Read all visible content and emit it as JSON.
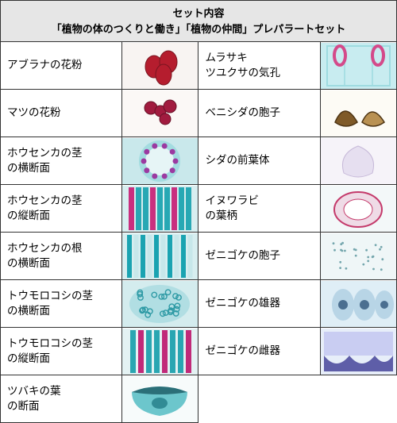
{
  "header": {
    "line1": "セット内容",
    "line2": "「植物の体のつくりと働き」「植物の仲間」プレパラートセット"
  },
  "rows": [
    {
      "left": "アブラナの花粉",
      "right": "ムラサキ\nツユクサの気孔",
      "imgL": {
        "bg": "#f8f4f2",
        "type": "pollen",
        "fill": "#b51d2e",
        "stroke": "#7a1520"
      },
      "imgR": {
        "bg": "#c8ecf0",
        "type": "stomata",
        "fill": "#d44a8a",
        "frame": "#9edbe0"
      }
    },
    {
      "left": "マツの花粉",
      "right": "ベニシダの胞子",
      "imgL": {
        "bg": "#fbf8f6",
        "type": "pine",
        "fill": "#a11b3f",
        "stroke": "#6a1228"
      },
      "imgR": {
        "bg": "#fdfbf5",
        "type": "spore",
        "fill": "#7f5a28",
        "stroke": "#4f3615",
        "fill2": "#b99152"
      }
    },
    {
      "left": "ホウセンカの茎\nの横断面",
      "right": "シダの前葉体",
      "imgL": {
        "bg": "#c9e8eb",
        "type": "stemx",
        "ring": "#7dcfd5",
        "dots": "#9b3aa1"
      },
      "imgR": {
        "bg": "#f6f3f9",
        "type": "prothallus",
        "fill": "#e6dff0",
        "stroke": "#c6b8d8"
      }
    },
    {
      "left": "ホウセンカの茎\nの縦断面",
      "right": "イヌワラビ\nの葉柄",
      "imgL": {
        "bg": "#d8eef0",
        "type": "stemL1",
        "c1": "#c92f7f",
        "c2": "#28a8b4"
      },
      "imgR": {
        "bg": "#f3f8f9",
        "type": "petiole",
        "stroke": "#c43a6b",
        "inner": "#efdbe6"
      }
    },
    {
      "left": "ホウセンカの根\nの横断面",
      "right": "ゼニゴケの胞子",
      "imgL": {
        "bg": "#d7eef0",
        "type": "stemL2",
        "c1": "#1aa3b1",
        "c2": "#c7e7ea"
      },
      "imgR": {
        "bg": "#eff6f7",
        "type": "mossspore",
        "dot": "#74a6ad"
      }
    },
    {
      "left": "トウモロコシの茎\nの横断面",
      "right": "ゼニゴケの雄器",
      "imgL": {
        "bg": "#d4ecee",
        "type": "cornx",
        "ring": "#6fc6cd",
        "dot": "#2e9aa5"
      },
      "imgR": {
        "bg": "#dfeef6",
        "type": "anther",
        "fill": "#b8d5e6",
        "dark": "#4b6f90"
      }
    },
    {
      "left": "トウモロコシの茎\nの縦断面",
      "right": "ゼニゴケの雌器",
      "imgL": {
        "bg": "#e4f2f3",
        "type": "cornL",
        "c1": "#c12a79",
        "c2": "#2aa6b2"
      },
      "imgR": {
        "bg": "#e7eef9",
        "type": "arch",
        "fill": "#5e5ea8",
        "light": "#c9cdf2"
      }
    },
    {
      "left": "ツバキの葉\nの断面",
      "right": null,
      "imgL": {
        "bg": "#f7fbfb",
        "type": "leaf",
        "top": "#2b6f78",
        "mid": "#6cc6cc",
        "vein": "#318b95"
      },
      "imgR": null
    }
  ]
}
